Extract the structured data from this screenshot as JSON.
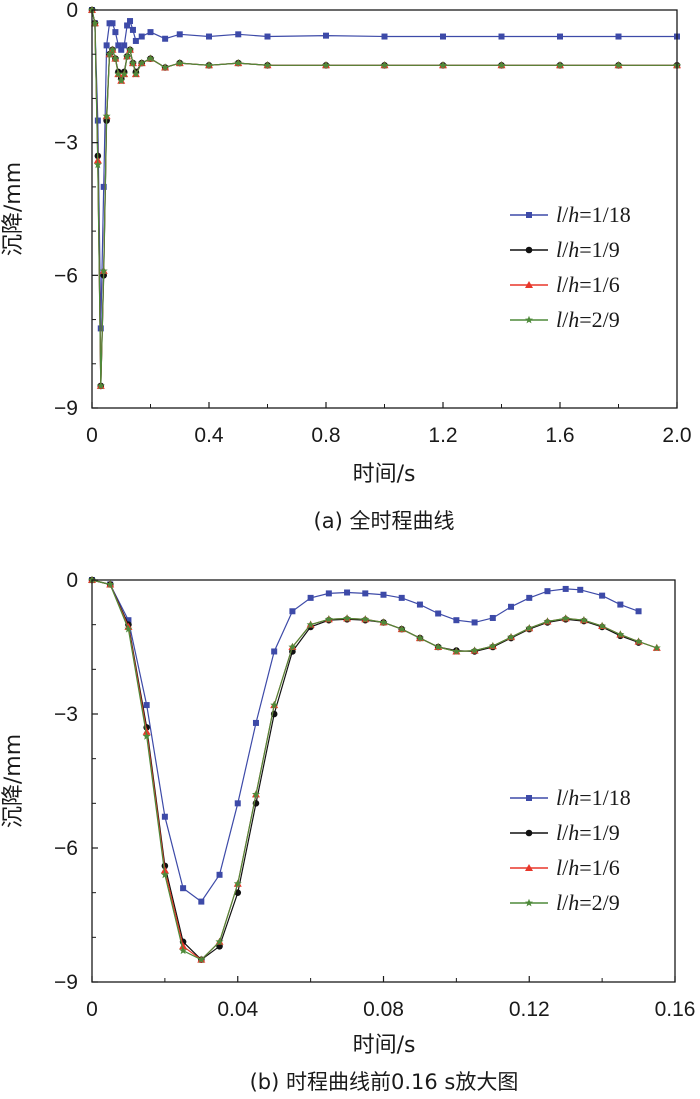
{
  "colors": {
    "series_1_18": "#3d4aa8",
    "series_1_9": "#111111",
    "series_1_6": "#e8372a",
    "series_2_9": "#4e8a3a"
  },
  "legend_entries": [
    {
      "var_l": "l",
      "slash": "/",
      "var_h": "h",
      "rest": "=1/18",
      "color": "#3d4aa8",
      "marker": "square"
    },
    {
      "var_l": "l",
      "slash": "/",
      "var_h": "h",
      "rest": "=1/9",
      "color": "#111111",
      "marker": "circle"
    },
    {
      "var_l": "l",
      "slash": "/",
      "var_h": "h",
      "rest": "=1/6",
      "color": "#e8372a",
      "marker": "triangle"
    },
    {
      "var_l": "l",
      "slash": "/",
      "var_h": "h",
      "rest": "=2/9",
      "color": "#4e8a3a",
      "marker": "star"
    }
  ],
  "chart_data": [
    {
      "type": "line",
      "title": "(a) 全时程曲线",
      "xlabel": "时间/s",
      "ylabel": "沉降/mm",
      "xlim": [
        0,
        2.0
      ],
      "ylim": [
        -9,
        0
      ],
      "xticks": [
        0,
        0.4,
        0.8,
        1.2,
        1.6,
        2.0
      ],
      "xtick_labels": [
        "0",
        "0.4",
        "0.8",
        "1.2",
        "1.6",
        "2.0"
      ],
      "yticks": [
        0,
        -3,
        -6,
        -9
      ],
      "ytick_labels": [
        "0",
        "−3",
        "−6",
        "−9"
      ],
      "legend_position": "center-right",
      "series": [
        {
          "name": "l/h=1/18",
          "marker": "square",
          "x": [
            0,
            0.01,
            0.02,
            0.03,
            0.04,
            0.05,
            0.06,
            0.07,
            0.08,
            0.09,
            0.1,
            0.11,
            0.12,
            0.13,
            0.14,
            0.15,
            0.17,
            0.2,
            0.25,
            0.3,
            0.4,
            0.5,
            0.6,
            0.8,
            1.0,
            1.2,
            1.4,
            1.6,
            1.8,
            2.0
          ],
          "y": [
            0,
            -0.3,
            -2.5,
            -7.2,
            -4.0,
            -0.8,
            -0.3,
            -0.3,
            -0.5,
            -0.8,
            -0.9,
            -0.8,
            -0.35,
            -0.25,
            -0.45,
            -0.7,
            -0.6,
            -0.5,
            -0.65,
            -0.55,
            -0.6,
            -0.55,
            -0.6,
            -0.58,
            -0.6,
            -0.6,
            -0.6,
            -0.6,
            -0.6,
            -0.6
          ]
        },
        {
          "name": "l/h=1/9",
          "marker": "circle",
          "x": [
            0,
            0.01,
            0.02,
            0.03,
            0.04,
            0.05,
            0.06,
            0.07,
            0.08,
            0.09,
            0.1,
            0.11,
            0.12,
            0.13,
            0.14,
            0.15,
            0.17,
            0.2,
            0.25,
            0.3,
            0.4,
            0.5,
            0.6,
            0.8,
            1.0,
            1.2,
            1.4,
            1.6,
            1.8,
            2.0
          ],
          "y": [
            0,
            -0.3,
            -3.3,
            -8.5,
            -6.0,
            -2.5,
            -1.0,
            -0.9,
            -1.1,
            -1.4,
            -1.55,
            -1.4,
            -1.05,
            -0.9,
            -1.2,
            -1.4,
            -1.2,
            -1.1,
            -1.3,
            -1.2,
            -1.25,
            -1.2,
            -1.25,
            -1.25,
            -1.25,
            -1.25,
            -1.25,
            -1.25,
            -1.25,
            -1.25
          ]
        },
        {
          "name": "l/h=1/6",
          "marker": "triangle",
          "x": [
            0,
            0.01,
            0.02,
            0.03,
            0.04,
            0.05,
            0.06,
            0.07,
            0.08,
            0.09,
            0.1,
            0.11,
            0.12,
            0.13,
            0.14,
            0.15,
            0.17,
            0.2,
            0.25,
            0.3,
            0.4,
            0.5,
            0.6,
            0.8,
            1.0,
            1.2,
            1.4,
            1.6,
            1.8,
            2.0
          ],
          "y": [
            0,
            -0.3,
            -3.4,
            -8.5,
            -5.9,
            -2.4,
            -1.0,
            -0.9,
            -1.1,
            -1.45,
            -1.6,
            -1.45,
            -1.05,
            -0.9,
            -1.2,
            -1.45,
            -1.2,
            -1.1,
            -1.3,
            -1.2,
            -1.25,
            -1.2,
            -1.25,
            -1.25,
            -1.25,
            -1.25,
            -1.25,
            -1.25,
            -1.25,
            -1.25
          ]
        },
        {
          "name": "l/h=2/9",
          "marker": "star",
          "x": [
            0,
            0.01,
            0.02,
            0.03,
            0.04,
            0.05,
            0.06,
            0.07,
            0.08,
            0.09,
            0.1,
            0.11,
            0.12,
            0.13,
            0.14,
            0.15,
            0.17,
            0.2,
            0.25,
            0.3,
            0.4,
            0.5,
            0.6,
            0.8,
            1.0,
            1.2,
            1.4,
            1.6,
            1.8,
            2.0
          ],
          "y": [
            0,
            -0.3,
            -3.5,
            -8.5,
            -5.9,
            -2.4,
            -1.0,
            -0.9,
            -1.1,
            -1.45,
            -1.6,
            -1.45,
            -1.05,
            -0.9,
            -1.2,
            -1.45,
            -1.2,
            -1.1,
            -1.3,
            -1.2,
            -1.25,
            -1.2,
            -1.25,
            -1.25,
            -1.25,
            -1.25,
            -1.25,
            -1.25,
            -1.25,
            -1.25
          ]
        }
      ]
    },
    {
      "type": "line",
      "title": "(b) 时程曲线前0.16 s放大图",
      "xlabel": "时间/s",
      "ylabel": "沉降/mm",
      "xlim": [
        0,
        0.16
      ],
      "ylim": [
        -9,
        0
      ],
      "xticks": [
        0,
        0.04,
        0.08,
        0.12,
        0.16
      ],
      "xtick_labels": [
        "0",
        "0.04",
        "0.08",
        "0.12",
        "0.16"
      ],
      "yticks": [
        0,
        -3,
        -6,
        -9
      ],
      "ytick_labels": [
        "0",
        "−3",
        "−6",
        "−9"
      ],
      "legend_position": "center-right",
      "series": [
        {
          "name": "l/h=1/18",
          "marker": "square",
          "x": [
            0,
            0.005,
            0.01,
            0.015,
            0.02,
            0.025,
            0.03,
            0.035,
            0.04,
            0.045,
            0.05,
            0.055,
            0.06,
            0.065,
            0.07,
            0.075,
            0.08,
            0.085,
            0.09,
            0.095,
            0.1,
            0.105,
            0.11,
            0.115,
            0.12,
            0.125,
            0.13,
            0.134,
            0.14,
            0.145,
            0.15
          ],
          "y": [
            0,
            -0.1,
            -0.9,
            -2.8,
            -5.3,
            -6.9,
            -7.2,
            -6.6,
            -5.0,
            -3.2,
            -1.6,
            -0.7,
            -0.4,
            -0.3,
            -0.28,
            -0.3,
            -0.33,
            -0.4,
            -0.55,
            -0.75,
            -0.9,
            -0.95,
            -0.85,
            -0.6,
            -0.4,
            -0.25,
            -0.2,
            -0.22,
            -0.35,
            -0.55,
            -0.7
          ]
        },
        {
          "name": "l/h=1/9",
          "marker": "circle",
          "x": [
            0,
            0.005,
            0.01,
            0.015,
            0.02,
            0.025,
            0.03,
            0.035,
            0.04,
            0.045,
            0.05,
            0.055,
            0.06,
            0.065,
            0.07,
            0.075,
            0.08,
            0.085,
            0.09,
            0.095,
            0.1,
            0.105,
            0.11,
            0.115,
            0.12,
            0.125,
            0.13,
            0.135,
            0.14,
            0.145,
            0.15
          ],
          "y": [
            0,
            -0.1,
            -1.0,
            -3.3,
            -6.4,
            -8.1,
            -8.5,
            -8.2,
            -7.0,
            -5.0,
            -3.0,
            -1.6,
            -1.05,
            -0.9,
            -0.88,
            -0.9,
            -0.95,
            -1.1,
            -1.3,
            -1.5,
            -1.58,
            -1.6,
            -1.5,
            -1.3,
            -1.1,
            -0.95,
            -0.88,
            -0.92,
            -1.05,
            -1.25,
            -1.4
          ]
        },
        {
          "name": "l/h=1/6",
          "marker": "triangle",
          "x": [
            0,
            0.005,
            0.01,
            0.015,
            0.02,
            0.025,
            0.03,
            0.035,
            0.04,
            0.045,
            0.05,
            0.055,
            0.06,
            0.065,
            0.07,
            0.075,
            0.08,
            0.085,
            0.09,
            0.095,
            0.1,
            0.105,
            0.11,
            0.115,
            0.12,
            0.125,
            0.13,
            0.135,
            0.14,
            0.145,
            0.15,
            0.155
          ],
          "y": [
            0,
            -0.1,
            -1.05,
            -3.4,
            -6.5,
            -8.2,
            -8.5,
            -8.1,
            -6.8,
            -4.8,
            -2.8,
            -1.5,
            -1.0,
            -0.88,
            -0.86,
            -0.88,
            -0.95,
            -1.1,
            -1.3,
            -1.5,
            -1.6,
            -1.58,
            -1.48,
            -1.28,
            -1.08,
            -0.93,
            -0.86,
            -0.9,
            -1.03,
            -1.22,
            -1.38,
            -1.52
          ]
        },
        {
          "name": "l/h=2/9",
          "marker": "star",
          "x": [
            0,
            0.005,
            0.01,
            0.015,
            0.02,
            0.025,
            0.03,
            0.035,
            0.04,
            0.045,
            0.05,
            0.055,
            0.06,
            0.065,
            0.07,
            0.075,
            0.08,
            0.085,
            0.09,
            0.095,
            0.1,
            0.105,
            0.11,
            0.115,
            0.12,
            0.125,
            0.13,
            0.135,
            0.14,
            0.145,
            0.15,
            0.155
          ],
          "y": [
            0,
            -0.1,
            -1.1,
            -3.5,
            -6.6,
            -8.3,
            -8.5,
            -8.1,
            -6.8,
            -4.8,
            -2.8,
            -1.5,
            -1.0,
            -0.88,
            -0.86,
            -0.88,
            -0.95,
            -1.1,
            -1.3,
            -1.5,
            -1.6,
            -1.58,
            -1.48,
            -1.28,
            -1.08,
            -0.93,
            -0.86,
            -0.9,
            -1.03,
            -1.22,
            -1.38,
            -1.52
          ]
        }
      ]
    }
  ]
}
